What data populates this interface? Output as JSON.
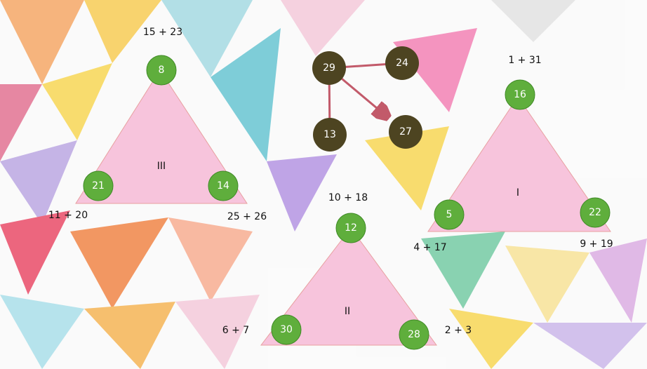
{
  "triangles": [
    {
      "label": "III",
      "vertices": [
        "8",
        "21",
        "14"
      ],
      "expressions": [
        "15 + 23",
        "11 + 20",
        "25 + 26"
      ]
    },
    {
      "label": "I",
      "vertices": [
        "16",
        "5",
        "22"
      ],
      "expressions": [
        "1 + 31",
        "4 + 17",
        "9 + 19"
      ]
    },
    {
      "label": "II",
      "vertices": [
        "12",
        "30",
        "28"
      ],
      "expressions": [
        "10 + 18",
        "6 + 7",
        "2 + 3"
      ]
    }
  ],
  "dark_nodes": [
    "29",
    "24",
    "13",
    "27"
  ]
}
